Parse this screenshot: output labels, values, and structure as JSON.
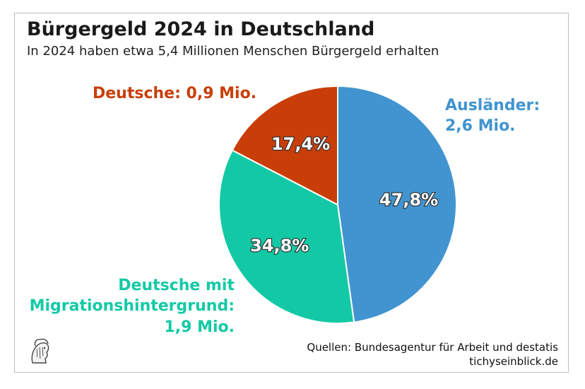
{
  "title": "Bürgergeld 2024 in Deutschland",
  "subtitle": "In 2024 haben etwa 5,4 Millionen Menschen Bürgergeld erhalten",
  "chart_data": {
    "type": "pie",
    "title": "Bürgergeld 2024 in Deutschland",
    "subtitle": "In 2024 haben etwa 5,4 Millionen Menschen Bürgergeld erhalten",
    "slices": [
      {
        "key": "auslaender",
        "category_line1": "Ausländer:",
        "category_line2": "2,6 Mio.",
        "value_mio": 2.6,
        "percent": 47.8,
        "percent_label": "47,8%",
        "color": "#4194cf"
      },
      {
        "key": "migration",
        "category_line1": "Deutsche mit",
        "category_line2": "Migrationshintergrund:",
        "category_line3": "1,9 Mio.",
        "value_mio": 1.9,
        "percent": 34.8,
        "percent_label": "34,8%",
        "color": "#13c9a5"
      },
      {
        "key": "deutsche",
        "category_line1": "Deutsche: 0,9 Mio.",
        "value_mio": 0.9,
        "percent": 17.4,
        "percent_label": "17,4%",
        "color": "#c93e08"
      }
    ]
  },
  "footer": {
    "source_line": "Quellen: Bundesagentur für Arbeit und destatis",
    "site": "tichyseinblick.de"
  }
}
